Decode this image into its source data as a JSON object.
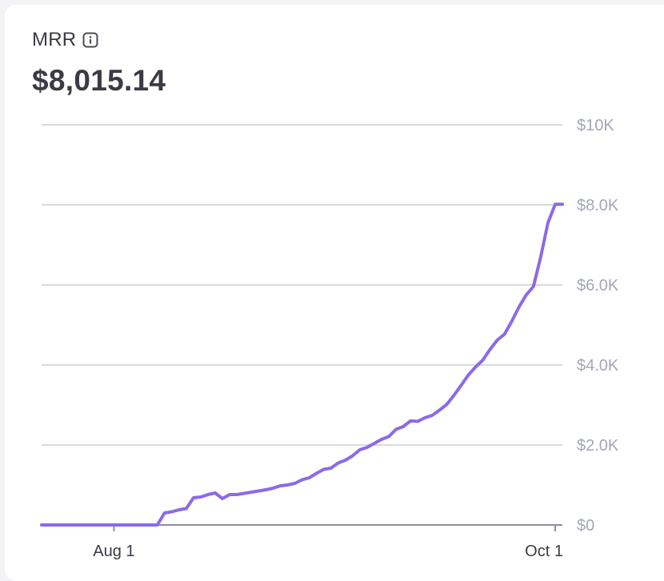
{
  "card": {
    "title": "MRR",
    "info_icon": "info-icon",
    "value": "$8,015.14"
  },
  "colors": {
    "line": "#8b6ae9",
    "grid": "#d9dae0",
    "axis": "#8c8fa1"
  },
  "chart_data": {
    "type": "line",
    "title": "MRR",
    "x_tick_labels": [
      "Aug 1",
      "Oct 1"
    ],
    "y_tick_labels": [
      "$0",
      "$2.0K",
      "$4.0K",
      "$6.0K",
      "$8.0K",
      "$10K"
    ],
    "ylim": [
      0,
      10000
    ],
    "xlim": [
      "2023-07-22",
      "2023-10-02"
    ],
    "grid": true,
    "y_axis_position": "right",
    "series": [
      {
        "x": [
          "2023-07-22",
          "2023-08-01",
          "2023-08-04",
          "2023-08-07",
          "2023-08-08",
          "2023-08-09",
          "2023-08-10",
          "2023-08-11",
          "2023-08-12",
          "2023-08-13",
          "2023-08-14",
          "2023-08-15",
          "2023-08-16",
          "2023-08-17",
          "2023-08-18",
          "2023-08-19",
          "2023-08-20",
          "2023-08-21",
          "2023-08-22",
          "2023-08-23",
          "2023-08-24",
          "2023-08-25",
          "2023-08-26",
          "2023-08-27",
          "2023-08-28",
          "2023-08-29",
          "2023-08-30",
          "2023-08-31",
          "2023-09-01",
          "2023-09-02",
          "2023-09-03",
          "2023-09-04",
          "2023-09-05",
          "2023-09-06",
          "2023-09-07",
          "2023-09-08",
          "2023-09-09",
          "2023-09-10",
          "2023-09-11",
          "2023-09-12",
          "2023-09-13",
          "2023-09-14",
          "2023-09-15",
          "2023-09-16",
          "2023-09-17",
          "2023-09-18",
          "2023-09-19",
          "2023-09-20",
          "2023-09-21",
          "2023-09-22",
          "2023-09-23",
          "2023-09-24",
          "2023-09-25",
          "2023-09-26",
          "2023-09-27",
          "2023-09-28",
          "2023-09-29",
          "2023-09-30",
          "2023-10-01",
          "2023-10-02"
        ],
        "y": [
          0,
          0,
          0,
          0,
          300,
          330,
          380,
          410,
          680,
          700,
          760,
          800,
          660,
          760,
          760,
          790,
          820,
          850,
          880,
          920,
          980,
          1000,
          1040,
          1130,
          1180,
          1290,
          1390,
          1420,
          1550,
          1620,
          1730,
          1880,
          1940,
          2040,
          2140,
          2210,
          2390,
          2460,
          2600,
          2590,
          2680,
          2740,
          2870,
          3010,
          3240,
          3490,
          3750,
          3950,
          4120,
          4390,
          4620,
          4770,
          5090,
          5450,
          5750,
          5960,
          6700,
          7550,
          8015,
          8015
        ]
      }
    ]
  }
}
